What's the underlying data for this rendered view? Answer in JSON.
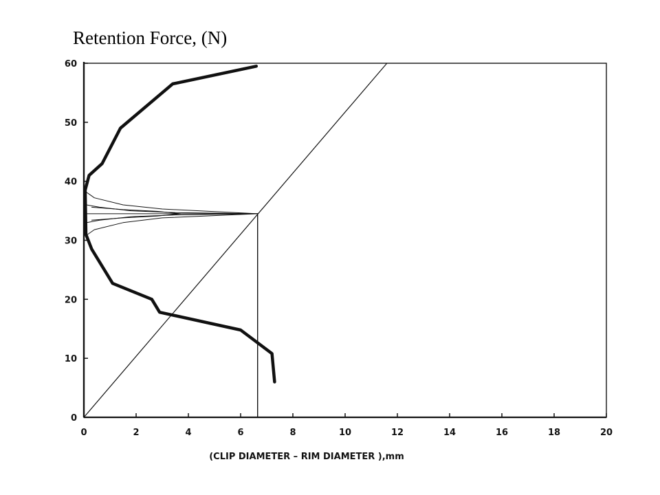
{
  "chart_data": {
    "type": "line",
    "title": "Retention Force, (N)",
    "xlabel": "(CLIP DIAMETER – RIM DIAMETER ),mm",
    "ylabel": "",
    "xlim": [
      0,
      20
    ],
    "ylim": [
      0,
      60
    ],
    "x_ticks": [
      0,
      2,
      4,
      6,
      8,
      10,
      12,
      14,
      16,
      18,
      20
    ],
    "y_ticks": [
      0,
      10,
      20,
      30,
      40,
      50,
      60
    ],
    "grid": false,
    "legend": "none",
    "series": [
      {
        "style": "thick",
        "x": [
          6.6,
          3.4,
          1.4,
          0.7,
          0.2,
          0.05,
          0.08,
          0.3,
          1.1,
          2.6,
          2.9,
          6.0,
          7.2,
          7.3
        ],
        "y": [
          59.5,
          56.5,
          49.0,
          43.0,
          41.0,
          38.5,
          31.0,
          28.5,
          22.7,
          20.0,
          17.8,
          14.8,
          10.8,
          6.0
        ]
      },
      {
        "style": "thin-diagonal",
        "x": [
          0,
          11.6
        ],
        "y": [
          0,
          60
        ]
      },
      {
        "style": "thin-vertical",
        "x": [
          6.65,
          6.65
        ],
        "y": [
          0,
          34.5
        ]
      },
      {
        "style": "thin-horizontal",
        "x": [
          0,
          6.65
        ],
        "y": [
          34.5,
          34.5
        ]
      },
      {
        "style": "thin",
        "x": [
          0.05,
          0.4,
          1.5,
          3.0,
          6.65
        ],
        "y": [
          38.3,
          37.2,
          36.0,
          35.3,
          34.5
        ]
      },
      {
        "style": "thin",
        "x": [
          0.1,
          0.6,
          1.8,
          3.5,
          6.65
        ],
        "y": [
          36.0,
          35.6,
          35.0,
          34.7,
          34.5
        ]
      },
      {
        "style": "thin",
        "x": [
          0.1,
          0.6,
          1.8,
          3.5,
          6.65
        ],
        "y": [
          33.0,
          33.4,
          34.0,
          34.3,
          34.5
        ]
      },
      {
        "style": "thin",
        "x": [
          0.05,
          0.4,
          1.5,
          3.0,
          6.65
        ],
        "y": [
          30.7,
          31.8,
          33.0,
          33.8,
          34.5
        ]
      },
      {
        "style": "thin-bulge",
        "x": [
          0.3,
          1.5,
          2.8,
          3.7,
          2.8,
          1.5,
          0.3
        ],
        "y": [
          35.6,
          35.2,
          34.9,
          34.5,
          34.1,
          33.8,
          33.4
        ]
      }
    ]
  }
}
